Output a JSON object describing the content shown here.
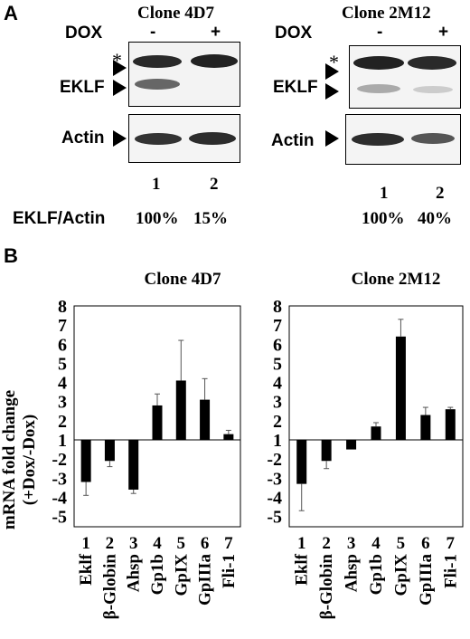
{
  "panel_a": {
    "letter": "A",
    "dox_label": "DOX",
    "minus": "-",
    "plus": "+",
    "asterisk": "*",
    "eklf_label": "EKLF",
    "actin_label": "Actin",
    "ratio_label": "EKLF/Actin",
    "clone_left": {
      "title": "Clone 4D7",
      "lanes": [
        "1",
        "2"
      ],
      "ratios": [
        "100%",
        "15%"
      ]
    },
    "clone_right": {
      "title": "Clone 2M12",
      "lanes": [
        "1",
        "2"
      ],
      "ratios": [
        "100%",
        "40%"
      ]
    }
  },
  "panel_b": {
    "letter": "B",
    "ylabel_line1": "mRNA fold change",
    "ylabel_line2": "(+Dox/-Dox)"
  },
  "chart_data": [
    {
      "type": "bar",
      "title": "Clone 4D7",
      "ylabel": "mRNA fold change (+Dox/-Dox)",
      "yticks": [
        8,
        7,
        6,
        5,
        4,
        3,
        2,
        1,
        -2,
        -3,
        -4,
        -5
      ],
      "ylim": [
        -5,
        8
      ],
      "numbers": [
        "1",
        "2",
        "3",
        "4",
        "5",
        "6",
        "7"
      ],
      "categories": [
        "Eklf",
        "β-Globin",
        "Ahsp",
        "Gp1b",
        "GpIX",
        "GpIIIa",
        "Fli-1"
      ],
      "values": [
        -3.2,
        -2.1,
        -3.6,
        2.8,
        4.1,
        3.1,
        1.3
      ],
      "errors": [
        0.7,
        0.3,
        0.2,
        0.6,
        2.1,
        1.1,
        0.2
      ]
    },
    {
      "type": "bar",
      "title": "Clone 2M12",
      "yticks": [
        8,
        7,
        6,
        5,
        4,
        3,
        2,
        1,
        -2,
        -3,
        -4,
        -5
      ],
      "ylim": [
        -5,
        8
      ],
      "numbers": [
        "1",
        "2",
        "3",
        "4",
        "5",
        "6",
        "7"
      ],
      "categories": [
        "Eklf",
        "β-Globin",
        "Ahsp",
        "Gp1b",
        "GpIX",
        "GpIIIa",
        "Fli-1"
      ],
      "values": [
        -3.3,
        -2.1,
        -1.5,
        1.7,
        6.4,
        2.3,
        2.6
      ],
      "errors": [
        1.4,
        0.4,
        0.0,
        0.2,
        0.9,
        0.4,
        0.1
      ]
    }
  ]
}
